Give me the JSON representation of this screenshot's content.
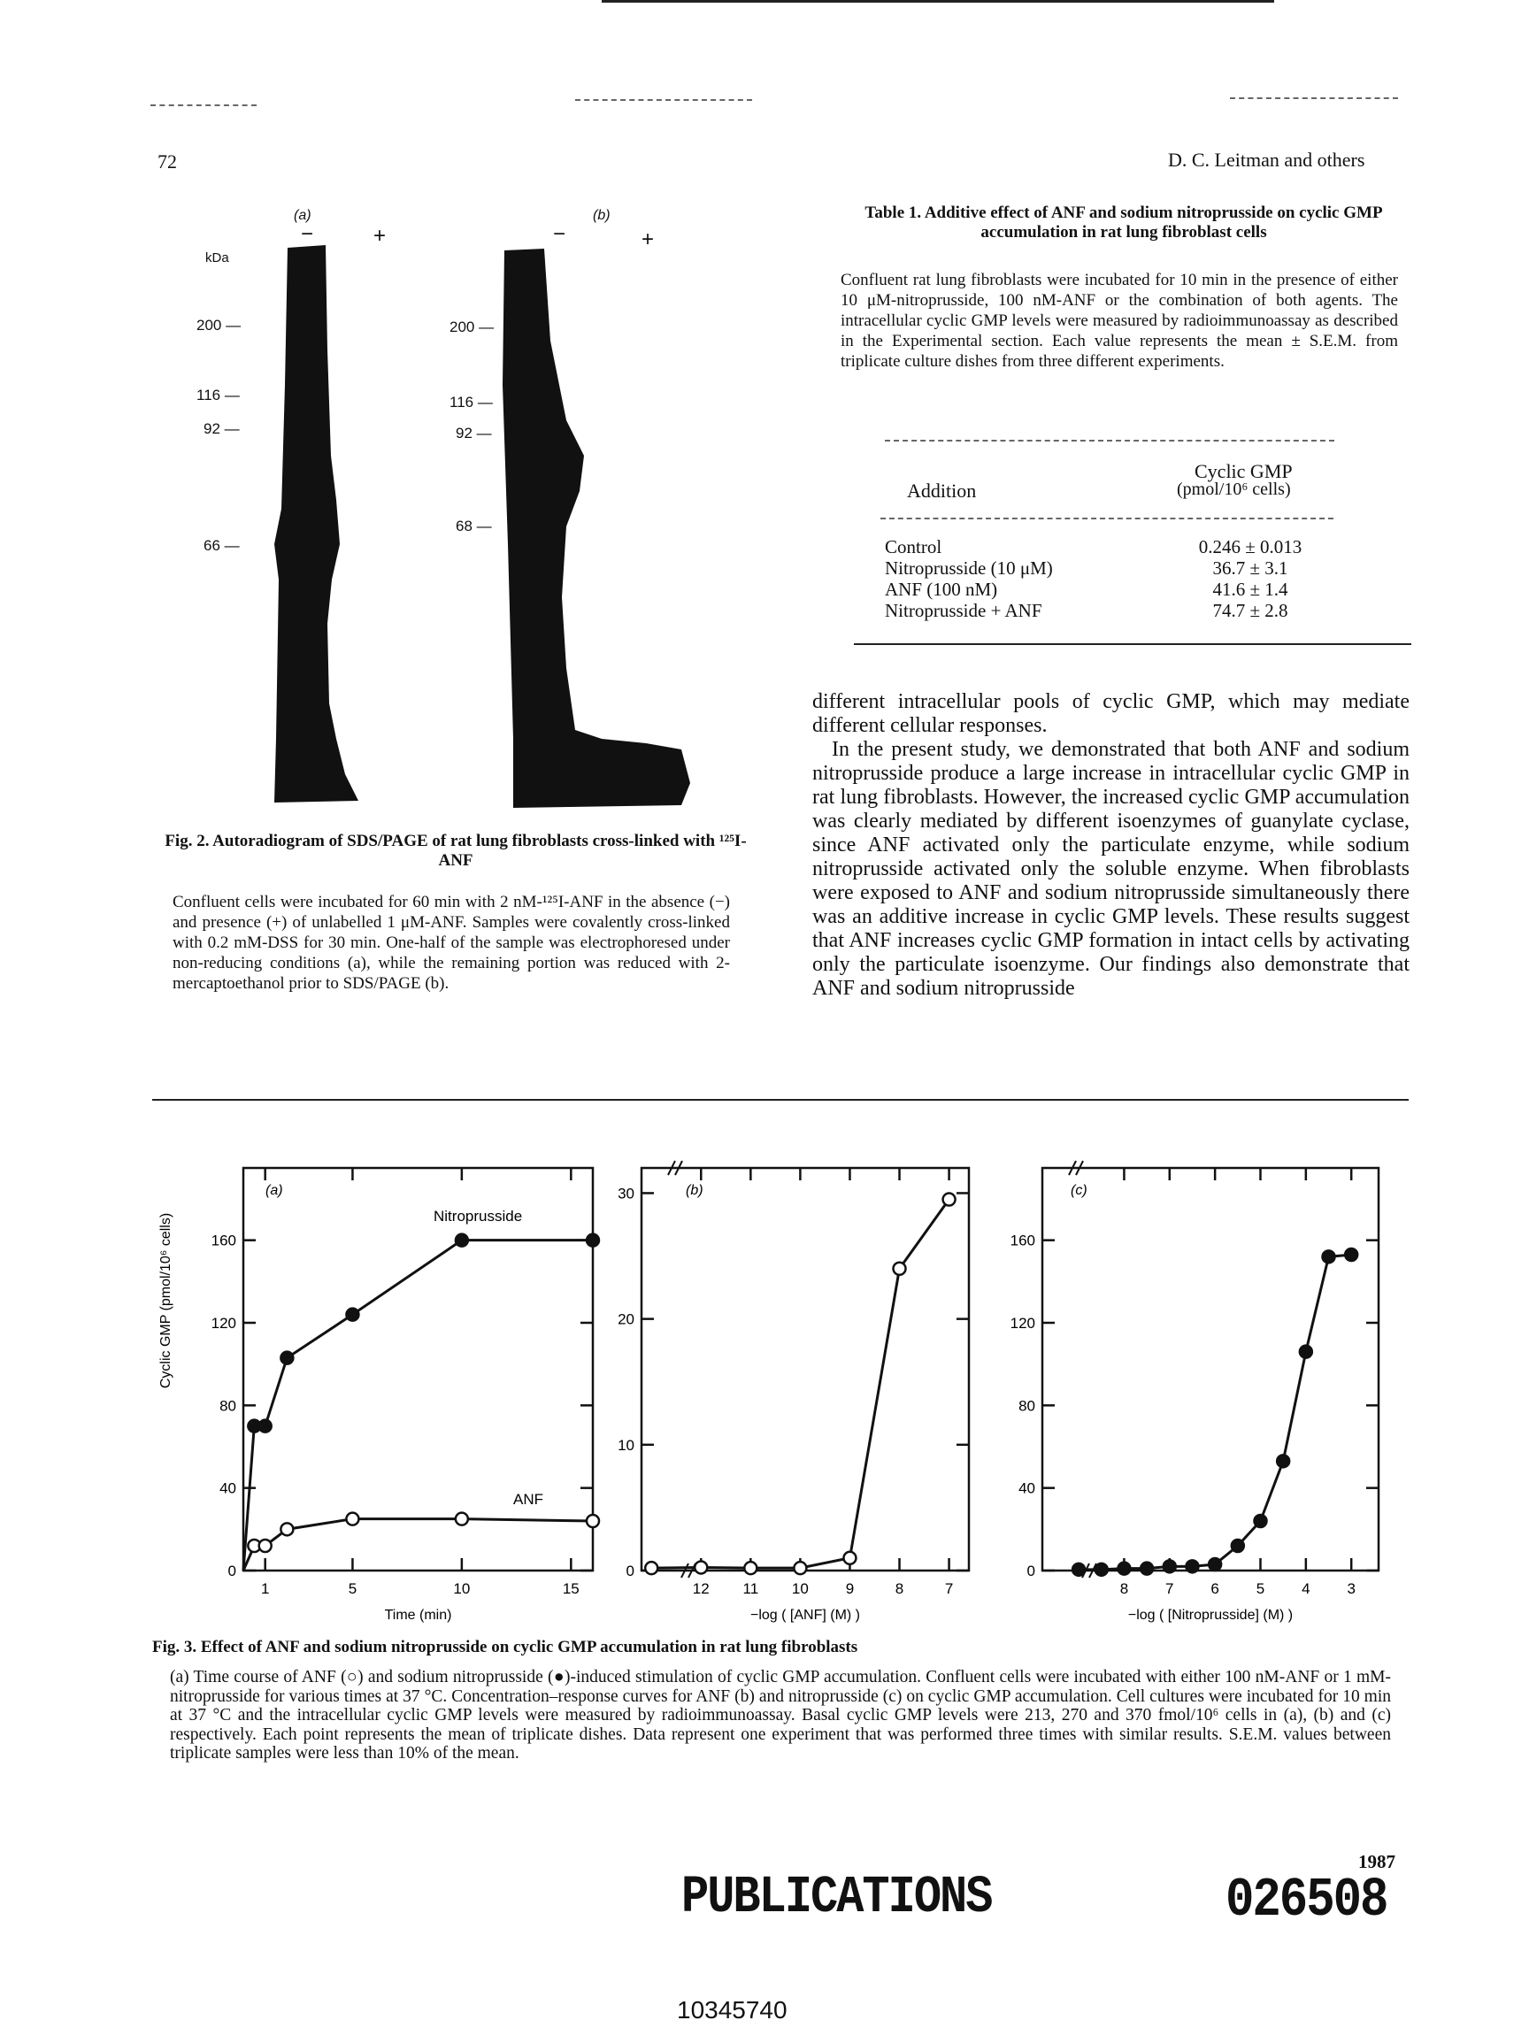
{
  "header": {
    "page_number": "72",
    "running_head": "D. C. Leitman and others"
  },
  "fig2": {
    "panel_a": "(a)",
    "panel_b": "(b)",
    "minus": "−",
    "plus": "+",
    "kda": "kDa",
    "markers_a": [
      "200 —",
      "116 —",
      "92 —",
      "66 —"
    ],
    "markers_b": [
      "200 —",
      "116 —",
      "92 —",
      "68 —"
    ],
    "title": "Fig. 2. Autoradiogram of SDS/PAGE of rat lung fibroblasts cross-linked with ¹²⁵I-ANF",
    "caption": "Confluent cells were incubated for 60 min with 2 nM-¹²⁵I-ANF in the absence (−) and presence (+) of unlabelled 1 μM-ANF. Samples were covalently cross-linked with 0.2 mM-DSS for 30 min. One-half of the sample was electrophoresed under non-reducing conditions (a), while the remaining portion was reduced with 2-mercaptoethanol prior to SDS/PAGE (b)."
  },
  "table1": {
    "title": "Table 1. Additive effect of ANF and sodium nitroprusside on cyclic GMP accumulation in rat lung fibroblast cells",
    "caption": "Confluent rat lung fibroblasts were incubated for 10 min in the presence of either 10 μM-nitroprusside, 100 nM-ANF or the combination of both agents. The intracellular cyclic GMP levels were measured by radioimmunoassay as described in the Experimental section. Each value represents the mean ± S.E.M. from triplicate culture dishes from three different experiments.",
    "col1_header": "Addition",
    "col2_header_line1": "Cyclic GMP",
    "col2_header_line2": "(pmol/10⁶ cells)",
    "rows": [
      {
        "addition": "Control",
        "value": "0.246 ± 0.013"
      },
      {
        "addition": "Nitroprusside (10 μM)",
        "value": "36.7 ± 3.1"
      },
      {
        "addition": "ANF (100 nM)",
        "value": "41.6 ± 1.4"
      },
      {
        "addition": "Nitroprusside + ANF",
        "value": "74.7 ± 2.8"
      }
    ]
  },
  "body_text": "different intracellular pools of cyclic GMP, which may mediate different cellular responses.",
  "body_text_2": "In the present study, we demonstrated that both ANF and sodium nitroprusside produce a large increase in intracellular cyclic GMP in rat lung fibroblasts. However, the increased cyclic GMP accumulation was clearly mediated by different isoenzymes of guanylate cyclase, since ANF activated only the particulate enzyme, while sodium nitroprusside activated only the soluble enzyme. When fibroblasts were exposed to ANF and sodium nitroprusside simultaneously there was an additive increase in cyclic GMP levels. These results suggest that ANF increases cyclic GMP formation in intact cells by activating only the particulate isoenzyme. Our findings also demonstrate that ANF and sodium nitroprusside",
  "fig3": {
    "title": "Fig. 3. Effect of ANF and sodium nitroprusside on cyclic GMP accumulation in rat lung fibroblasts",
    "caption": "(a) Time course of ANF (○) and sodium nitroprusside (●)-induced stimulation of cyclic GMP accumulation. Confluent cells were incubated with either 100 nM-ANF or 1 mM-nitroprusside for various times at 37 °C. Concentration–response curves for ANF (b) and nitroprusside (c) on cyclic GMP accumulation. Cell cultures were incubated for 10 min at 37 °C and the intracellular cyclic GMP levels were measured by radioimmunoassay. Basal cyclic GMP levels were 213, 270 and 370 fmol/10⁶ cells in (a), (b) and (c) respectively. Each point represents the mean of triplicate dishes. Data represent one experiment that was performed three times with similar results. S.E.M. values between triplicate samples were less than 10% of the mean.",
    "ylabel": "Cyclic GMP (pmol/10⁶ cells)"
  },
  "chart_data": [
    {
      "type": "line",
      "panel_label": "(a)",
      "xlabel": "Time (min)",
      "ylabel": "Cyclic GMP (pmol/10⁶ cells)",
      "xlim": [
        0,
        16
      ],
      "ylim": [
        0,
        195
      ],
      "xticks": [
        1,
        5,
        10,
        15
      ],
      "yticks": [
        0,
        40,
        80,
        120,
        160
      ],
      "series": [
        {
          "name": "Nitroprusside",
          "marker": "filled",
          "x": [
            0,
            0.5,
            1,
            2,
            5,
            10,
            16
          ],
          "y": [
            0,
            70,
            70,
            103,
            124,
            160,
            160
          ]
        },
        {
          "name": "ANF",
          "marker": "open",
          "x": [
            0,
            0.5,
            1,
            2,
            5,
            10,
            16
          ],
          "y": [
            0,
            12,
            12,
            20,
            25,
            25,
            24
          ]
        }
      ]
    },
    {
      "type": "line",
      "panel_label": "(b)",
      "xlabel": "−log ( [ANF] (M) )",
      "ylabel": "",
      "xlim": [
        13.2,
        6.6
      ],
      "ylim": [
        0,
        32
      ],
      "xticks": [
        12,
        11,
        10,
        9,
        8,
        7
      ],
      "yticks": [
        0,
        10,
        20,
        30
      ],
      "series": [
        {
          "name": "ANF",
          "marker": "open",
          "x": [
            13,
            12,
            11,
            10,
            9,
            8,
            7
          ],
          "y": [
            0.2,
            0.25,
            0.2,
            0.2,
            1.0,
            24,
            29.5
          ]
        }
      ]
    },
    {
      "type": "line",
      "panel_label": "(c)",
      "xlabel": "−log ( [Nitroprusside] (M) )",
      "ylabel": "",
      "xlim": [
        9.8,
        2.4
      ],
      "ylim": [
        0,
        195
      ],
      "xticks": [
        8,
        7,
        6,
        5,
        4,
        3
      ],
      "yticks": [
        0,
        40,
        80,
        120,
        160
      ],
      "series": [
        {
          "name": "Nitroprusside",
          "marker": "filled",
          "x": [
            9,
            8.5,
            8,
            7.5,
            7,
            6.5,
            6,
            5.5,
            5,
            4.5,
            4,
            3.5,
            3
          ],
          "y": [
            0.5,
            0.5,
            1,
            1,
            2,
            2,
            3,
            12,
            24,
            53,
            106,
            152,
            153
          ]
        }
      ]
    }
  ],
  "footer": {
    "year": "1987",
    "publications": "PUBLICATIONS",
    "code": "026508",
    "doc_id": "10345740"
  }
}
